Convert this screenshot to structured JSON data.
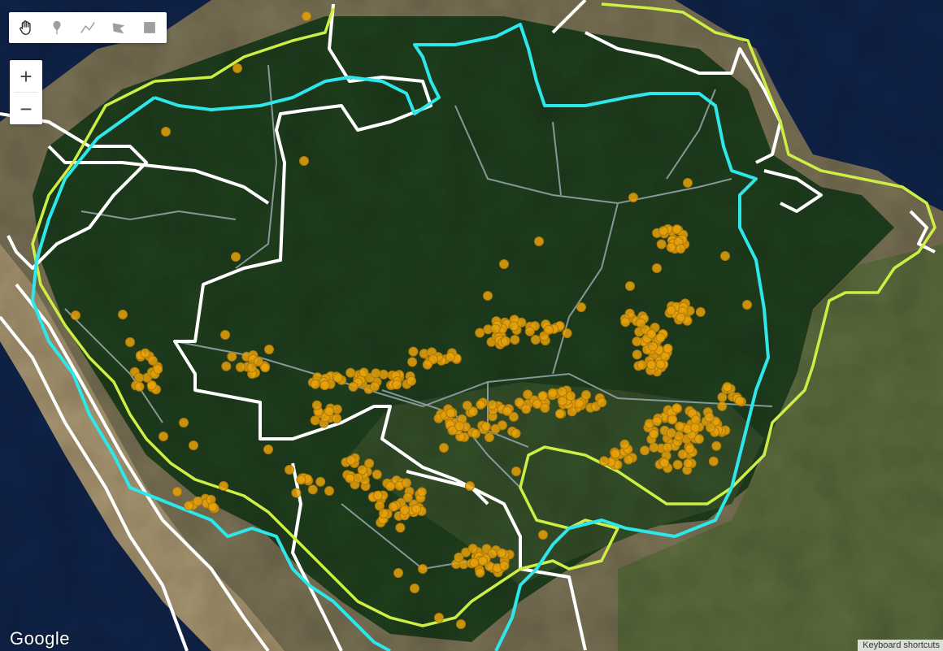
{
  "map": {
    "basemap": "satellite",
    "colors": {
      "ocean": "#10244a",
      "forest": "#1e3b1c",
      "dry_land": "#8a7a5a",
      "outer_boundary": "#ffffff",
      "cyan_boundary": "#2de7ea",
      "lime_boundary": "#cdee45",
      "state_lines": "#9aa8b0",
      "points": "#e8a20b"
    },
    "layers": [
      "white-boundary",
      "cyan-boundary",
      "lime-boundary",
      "state-lines",
      "occurrence-points"
    ]
  },
  "toolbar": {
    "tools": [
      {
        "name": "pan-tool",
        "icon": "hand-icon"
      },
      {
        "name": "marker-tool",
        "icon": "pin-icon"
      },
      {
        "name": "line-tool",
        "icon": "polyline-icon"
      },
      {
        "name": "polygon-tool",
        "icon": "polygon-icon"
      },
      {
        "name": "rectangle-tool",
        "icon": "rectangle-icon"
      }
    ]
  },
  "zoom": {
    "in_label": "+",
    "out_label": "−"
  },
  "footer": {
    "logo": "Google",
    "keyboard_shortcuts": "Keyboard shortcuts"
  }
}
